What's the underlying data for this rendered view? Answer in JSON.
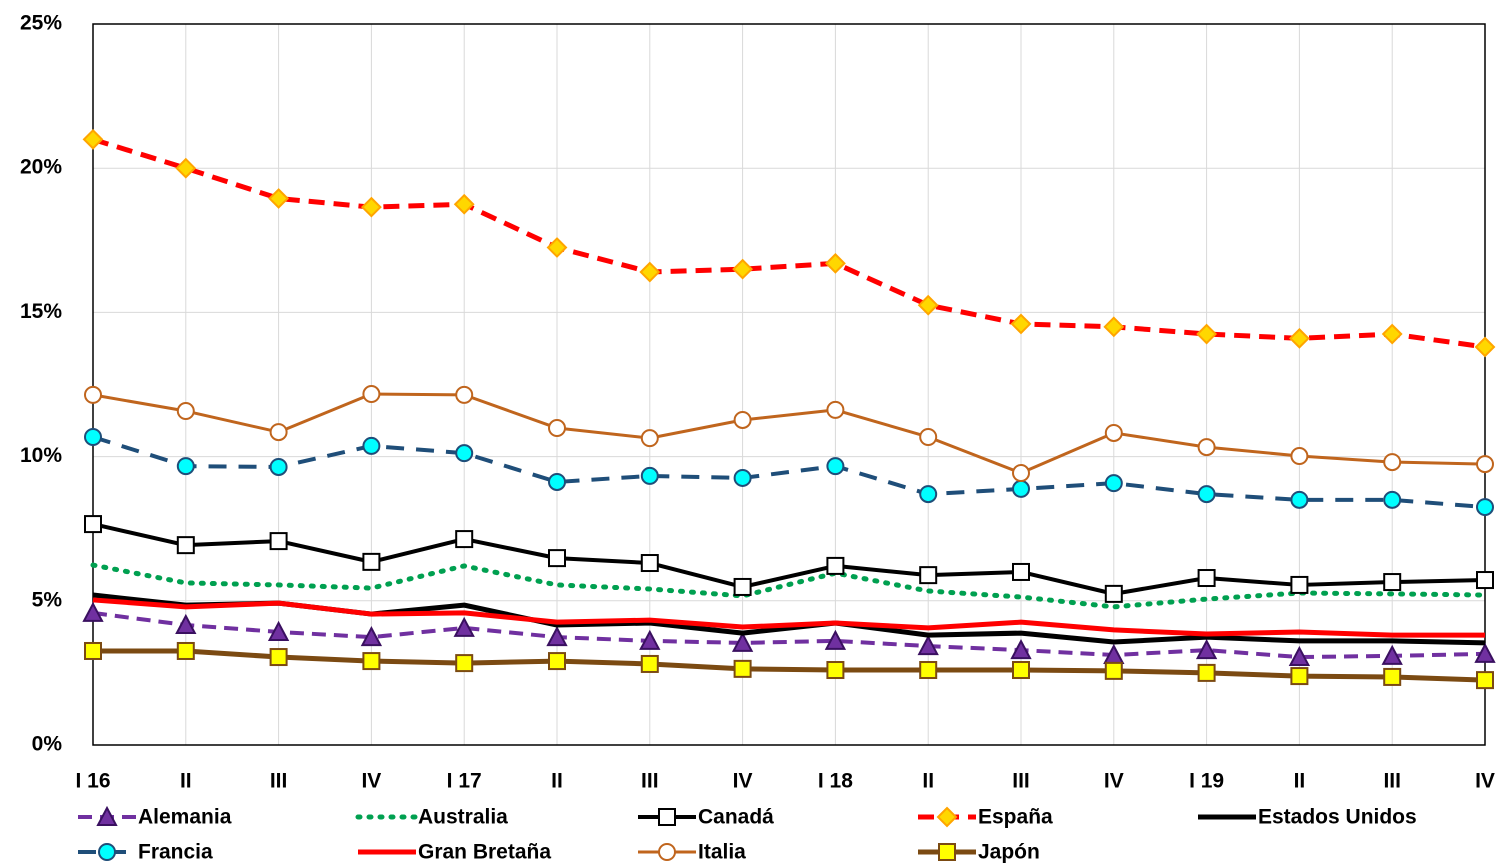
{
  "chart_data": {
    "type": "line",
    "categories": [
      "I 16",
      "II",
      "III",
      "IV",
      "I 17",
      "II",
      "III",
      "IV",
      "I 18",
      "II",
      "III",
      "IV",
      "I 19",
      "II",
      "III",
      "IV"
    ],
    "ylim": [
      0,
      25
    ],
    "yticks": [
      {
        "value": 0,
        "label": "0%"
      },
      {
        "value": 5,
        "label": "5%"
      },
      {
        "value": 10,
        "label": "10%"
      },
      {
        "value": 15,
        "label": "15%"
      },
      {
        "value": 20,
        "label": "20%"
      },
      {
        "value": 25,
        "label": "25%"
      }
    ],
    "grid": true,
    "legend": "bottom",
    "series": [
      {
        "name": "Alemania",
        "color": "#7030a0",
        "dash": "14 8",
        "width": 4,
        "marker": "triangle",
        "marker_fill": "#7030a0",
        "marker_stroke": "#3a1060",
        "values": [
          4.58,
          4.16,
          3.92,
          3.74,
          4.06,
          3.74,
          3.61,
          3.54,
          3.61,
          3.43,
          3.29,
          3.12,
          3.29,
          3.05,
          3.09,
          3.16
        ]
      },
      {
        "name": "Australia",
        "color": "#00a050",
        "dash": "2 9",
        "width": 5,
        "marker": "none",
        "values": [
          6.24,
          5.62,
          5.55,
          5.44,
          6.21,
          5.55,
          5.41,
          5.17,
          5.96,
          5.34,
          5.13,
          4.79,
          5.06,
          5.27,
          5.24,
          5.2
        ]
      },
      {
        "name": "Canadá",
        "color": "#000000",
        "dash": "none",
        "width": 4,
        "marker": "square",
        "marker_fill": "#ffffff",
        "marker_stroke": "#000000",
        "values": [
          7.66,
          6.93,
          7.07,
          6.35,
          7.14,
          6.48,
          6.31,
          5.48,
          6.21,
          5.89,
          6.0,
          5.24,
          5.79,
          5.55,
          5.65,
          5.72
        ]
      },
      {
        "name": "España",
        "color": "#ff0000",
        "dash": "16 9",
        "width": 5,
        "marker": "diamond",
        "marker_fill": "#ffd700",
        "marker_stroke": "#ffa500",
        "values": [
          21.0,
          20.0,
          18.95,
          18.65,
          18.75,
          17.25,
          16.4,
          16.5,
          16.7,
          15.25,
          14.6,
          14.5,
          14.25,
          14.1,
          14.25,
          13.8
        ]
      },
      {
        "name": "Estados Unidos",
        "color": "#000000",
        "dash": "none",
        "width": 5,
        "marker": "none",
        "values": [
          5.2,
          4.85,
          4.92,
          4.54,
          4.85,
          4.16,
          4.23,
          3.88,
          4.23,
          3.81,
          3.88,
          3.57,
          3.74,
          3.61,
          3.61,
          3.54
        ]
      },
      {
        "name": "Francia",
        "color": "#1f4e79",
        "dash": "18 12",
        "width": 4,
        "marker": "circle",
        "marker_fill": "#00ffff",
        "marker_stroke": "#1f4e79",
        "values": [
          10.68,
          9.67,
          9.64,
          10.37,
          10.12,
          9.12,
          9.33,
          9.26,
          9.67,
          8.7,
          8.88,
          9.08,
          8.7,
          8.5,
          8.5,
          8.25
        ]
      },
      {
        "name": "Gran Bretaña",
        "color": "#ff0000",
        "dash": "none",
        "width": 5,
        "marker": "none",
        "values": [
          5.03,
          4.79,
          4.92,
          4.54,
          4.58,
          4.26,
          4.33,
          4.09,
          4.23,
          4.06,
          4.26,
          3.99,
          3.85,
          3.92,
          3.81,
          3.81
        ]
      },
      {
        "name": "Italia",
        "color": "#c0651d",
        "dash": "none",
        "width": 3,
        "marker": "circle",
        "marker_fill": "#ffffff",
        "marker_stroke": "#c0651d",
        "values": [
          12.14,
          11.58,
          10.85,
          12.17,
          12.14,
          10.99,
          10.64,
          11.27,
          11.62,
          10.68,
          9.43,
          10.82,
          10.33,
          10.02,
          9.81,
          9.74
        ]
      },
      {
        "name": "Japón",
        "color": "#7b4a12",
        "dash": "none",
        "width": 5,
        "marker": "square",
        "marker_fill": "#ffff00",
        "marker_stroke": "#7b4a12",
        "values": [
          3.26,
          3.26,
          3.05,
          2.91,
          2.84,
          2.91,
          2.81,
          2.64,
          2.6,
          2.6,
          2.6,
          2.57,
          2.5,
          2.39,
          2.36,
          2.25
        ]
      }
    ]
  }
}
